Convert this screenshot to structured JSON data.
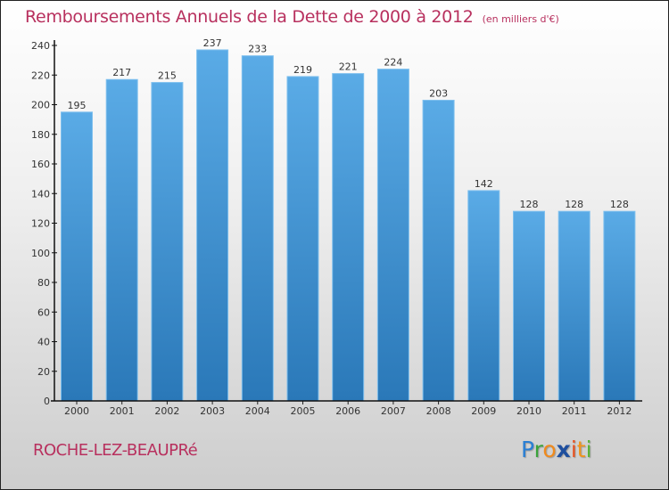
{
  "chart_data": {
    "type": "bar",
    "title": "Remboursements Annuels de la Dette de 2000 à 2012",
    "subtitle": "(en milliers d'€)",
    "xlabel": "",
    "ylabel": "",
    "categories": [
      "2000",
      "2001",
      "2002",
      "2003",
      "2004",
      "2005",
      "2006",
      "2007",
      "2008",
      "2009",
      "2010",
      "2011",
      "2012"
    ],
    "values": [
      195,
      217,
      215,
      237,
      233,
      219,
      221,
      224,
      203,
      142,
      128,
      128,
      128
    ],
    "ylim": [
      0,
      240
    ],
    "yticks": [
      0,
      20,
      40,
      60,
      80,
      100,
      120,
      140,
      160,
      180,
      200,
      220,
      240
    ],
    "grid": false,
    "legend": "none",
    "data_labels": true,
    "bar_color": "#3d8fd1"
  },
  "footer": {
    "commune": "ROCHE-LEZ-BEAUPRé",
    "logo_letters": [
      {
        "ch": "P",
        "color": "#2a7fd4"
      },
      {
        "ch": "r",
        "color": "#3aa33a"
      },
      {
        "ch": "o",
        "color": "#f08a1c"
      },
      {
        "ch": "x",
        "color": "#1f4f9e"
      },
      {
        "ch": "i",
        "color": "#e8501e"
      },
      {
        "ch": "t",
        "color": "#f0941c"
      },
      {
        "ch": "i",
        "color": "#5ab33a"
      }
    ]
  },
  "colors": {
    "title": "#b8305e",
    "bar_top": "#5aabe6",
    "bar_bottom": "#2a78b8"
  }
}
